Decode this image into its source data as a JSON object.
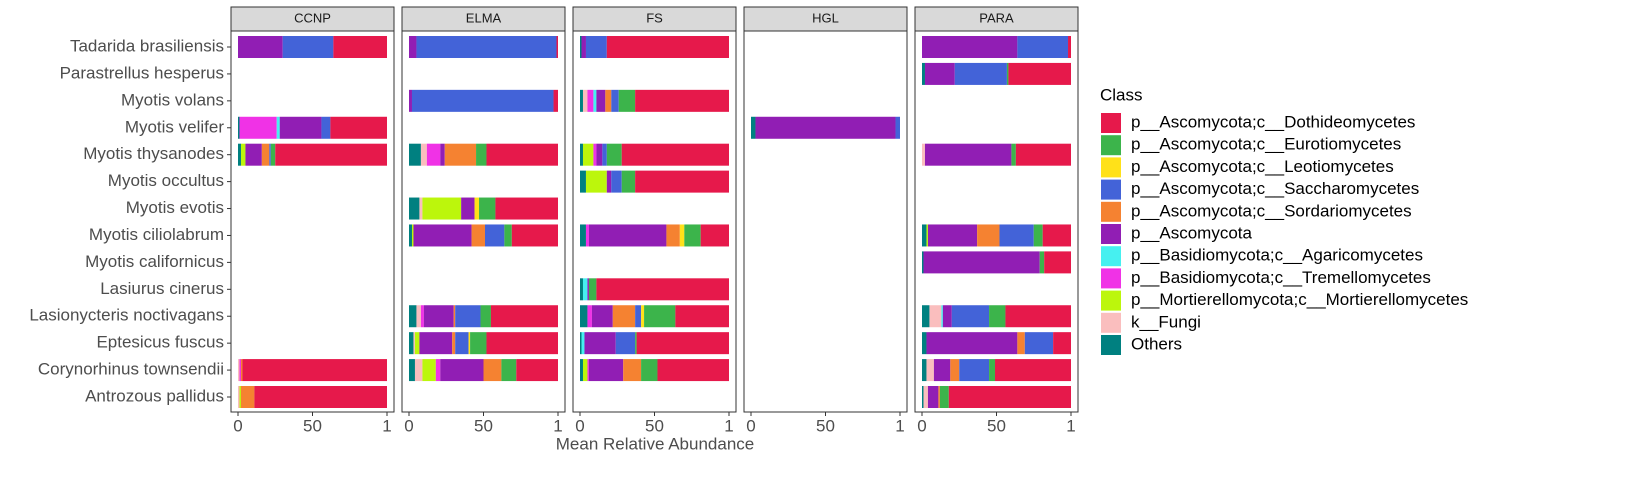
{
  "chart_data": {
    "type": "bar",
    "orientation": "horizontal",
    "stacked": true,
    "x_label": "Mean Relative Abundance",
    "legend_title": "Class",
    "legend_position": "right",
    "xlim": [
      -4.7,
      104.7
    ],
    "xticks": [
      0,
      50,
      {
        "value": 100,
        "label": "1"
      }
    ],
    "categories": [
      "Tadarida brasiliensis",
      "Parastrellus hesperus",
      "Myotis volans",
      "Myotis velifer",
      "Myotis thysanodes",
      "Myotis occultus",
      "Myotis evotis",
      "Myotis ciliolabrum",
      "Myotis californicus",
      "Lasiurus cinerus",
      "Lasionycteris noctivagans",
      "Eptesicus fuscus",
      "Corynorhinus townsendii",
      "Antrozous pallidus"
    ],
    "series": [
      {
        "name": "p__Ascomycota;c__Dothideomycetes",
        "color": "#E6194B"
      },
      {
        "name": "p__Ascomycota;c__Eurotiomycetes",
        "color": "#3CB44B"
      },
      {
        "name": "p__Ascomycota;c__Leotiomycetes",
        "color": "#FFE119"
      },
      {
        "name": "p__Ascomycota;c__Saccharomycetes",
        "color": "#4363D8"
      },
      {
        "name": "p__Ascomycota;c__Sordariomycetes",
        "color": "#F58231"
      },
      {
        "name": "p__Ascomycota",
        "color": "#911EB4"
      },
      {
        "name": "p__Basidiomycota;c__Agaricomycetes",
        "color": "#46F0F0"
      },
      {
        "name": "p__Basidiomycota;c__Tremellomycetes",
        "color": "#F032E6"
      },
      {
        "name": "p__Mortierellomycota;c__Mortierellomycetes",
        "color": "#BCF60C"
      },
      {
        "name": "k__Fungi",
        "color": "#FABEBE"
      },
      {
        "name": "Others",
        "color": "#008080"
      }
    ],
    "facets": [
      {
        "title": "CCNP",
        "values": [
          [
            36,
            0,
            0,
            34,
            0,
            30,
            0,
            0,
            0,
            0,
            0
          ],
          null,
          null,
          [
            38,
            0,
            0,
            6,
            0,
            28,
            2,
            25,
            0,
            0,
            1
          ],
          [
            75,
            3,
            0,
            1,
            5,
            11,
            0,
            0,
            3,
            0,
            2
          ],
          null,
          null,
          null,
          null,
          null,
          null,
          null,
          [
            97,
            0,
            0,
            0,
            1,
            0,
            0,
            1,
            0,
            1,
            0
          ],
          [
            89,
            0,
            0,
            0,
            9,
            0,
            0,
            0,
            1,
            1,
            0
          ]
        ]
      },
      {
        "title": "ELMA",
        "values": [
          [
            1,
            0,
            0,
            94,
            0,
            5,
            0,
            0,
            0,
            0,
            0
          ],
          null,
          [
            3,
            0,
            0,
            95,
            0,
            2,
            0,
            0,
            0,
            0,
            0
          ],
          null,
          [
            48,
            7,
            0,
            0,
            21,
            3,
            0,
            9,
            0,
            4,
            8
          ],
          null,
          [
            42,
            11,
            3,
            0,
            0,
            9,
            0,
            0,
            26,
            2,
            7
          ],
          [
            31,
            5,
            0,
            13,
            9,
            39,
            0,
            0,
            1,
            0,
            2
          ],
          null,
          null,
          [
            45,
            7,
            0,
            17,
            1,
            20,
            0,
            2,
            0,
            3,
            5
          ],
          [
            48,
            11,
            1,
            9,
            2,
            22,
            0,
            0,
            3,
            1,
            3
          ],
          [
            28,
            10,
            0,
            0,
            12,
            29,
            0,
            3,
            9,
            5,
            4
          ],
          null
        ]
      },
      {
        "title": "FS",
        "values": [
          [
            82,
            0,
            0,
            14,
            0,
            3,
            0,
            0,
            0,
            0,
            1
          ],
          null,
          [
            63,
            11,
            0,
            5,
            4,
            6,
            2,
            4,
            0,
            3,
            2
          ],
          null,
          [
            72,
            10,
            0,
            3,
            0,
            4,
            0,
            2,
            7,
            0,
            2
          ],
          [
            63,
            9,
            0,
            7,
            0,
            3,
            0,
            0,
            14,
            0,
            4
          ],
          null,
          [
            19,
            11,
            3,
            0,
            9,
            52,
            0,
            2,
            0,
            0,
            4
          ],
          null,
          [
            89,
            5,
            0,
            0,
            0,
            1,
            3,
            0,
            0,
            0,
            2
          ],
          [
            36,
            21,
            2,
            4,
            15,
            14,
            0,
            3,
            0,
            0,
            5
          ],
          [
            62,
            1,
            0,
            13,
            0,
            21,
            2,
            0,
            0,
            0,
            1
          ],
          [
            48,
            11,
            0,
            0,
            12,
            23,
            0,
            1,
            3,
            0,
            2
          ],
          null
        ]
      },
      {
        "title": "HGL",
        "values": [
          null,
          null,
          null,
          [
            0,
            0,
            0,
            3,
            0,
            94,
            0,
            0,
            0,
            0,
            3
          ],
          null,
          null,
          null,
          null,
          null,
          null,
          null,
          null,
          null,
          null
        ]
      },
      {
        "title": "PARA",
        "values": [
          [
            2,
            0,
            0,
            34,
            0,
            64,
            0,
            0,
            0,
            0,
            0
          ],
          [
            42,
            1,
            0,
            35,
            0,
            20,
            0,
            0,
            0,
            0,
            2
          ],
          null,
          null,
          [
            37,
            3,
            0,
            0,
            0,
            58,
            0,
            0,
            0,
            2,
            0
          ],
          null,
          null,
          [
            19,
            6,
            0,
            23,
            15,
            33,
            0,
            0,
            1,
            0,
            3
          ],
          [
            18,
            3,
            0,
            0,
            0,
            78,
            0,
            0,
            0,
            0,
            1
          ],
          null,
          [
            44,
            11,
            0,
            25,
            0,
            6,
            1,
            0,
            0,
            8,
            5
          ],
          [
            12,
            0,
            0,
            19,
            5,
            61,
            0,
            0,
            0,
            0,
            3
          ],
          [
            51,
            4,
            0,
            20,
            6,
            11,
            0,
            0,
            0,
            5,
            3
          ],
          [
            82,
            6,
            0,
            0,
            1,
            7,
            0,
            0,
            0,
            3,
            1
          ]
        ]
      }
    ]
  }
}
